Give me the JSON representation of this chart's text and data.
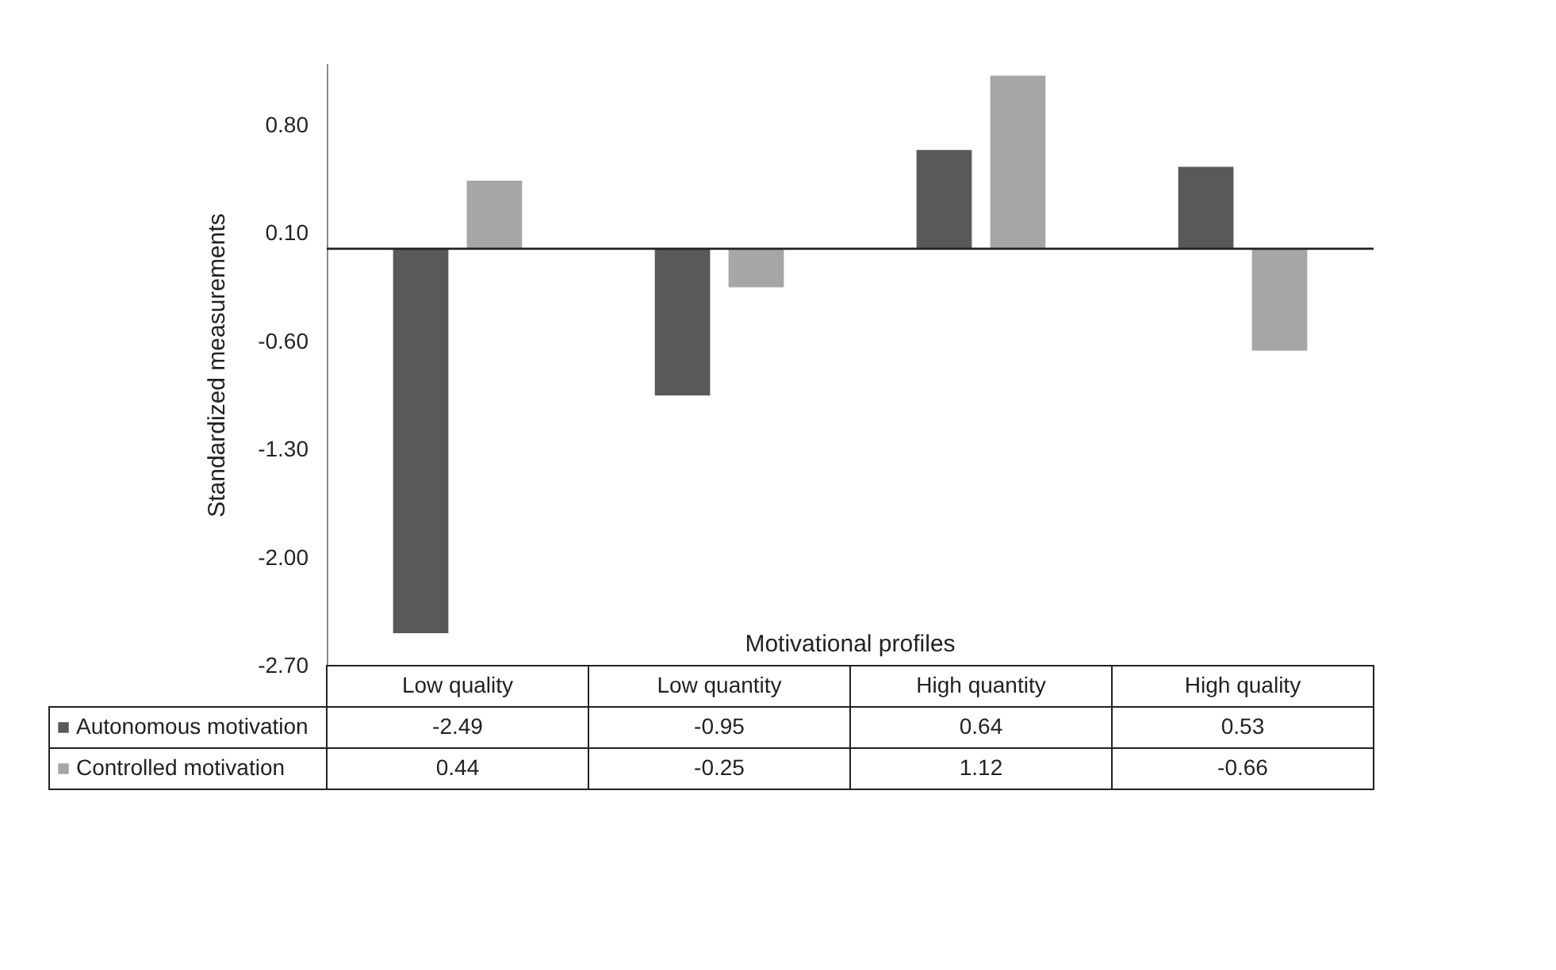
{
  "chart_data": {
    "type": "bar",
    "xlabel": "Motivational profiles",
    "ylabel": "Standardized measurements",
    "categories": [
      "Low quality",
      "Low quantity",
      "High quantity",
      "High quality"
    ],
    "series": [
      {
        "name": "Autonomous motivation",
        "color": "#595959",
        "values": [
          -2.49,
          -0.95,
          0.64,
          0.53
        ]
      },
      {
        "name": "Controlled motivation",
        "color": "#a6a6a6",
        "values": [
          0.44,
          -0.25,
          1.12,
          -0.66
        ]
      }
    ],
    "ylim": [
      -2.7,
      1.2
    ],
    "yticks": [
      {
        "value": -2.7,
        "label": "-2.70"
      },
      {
        "value": -2.0,
        "label": "-2.00"
      },
      {
        "value": -1.3,
        "label": "-1.30"
      },
      {
        "value": -0.6,
        "label": "-0.60"
      },
      {
        "value": 0.1,
        "label": "0.10"
      },
      {
        "value": 0.8,
        "label": "0.80"
      }
    ],
    "data_labels": true,
    "legend": "bottom left",
    "grid": false
  }
}
